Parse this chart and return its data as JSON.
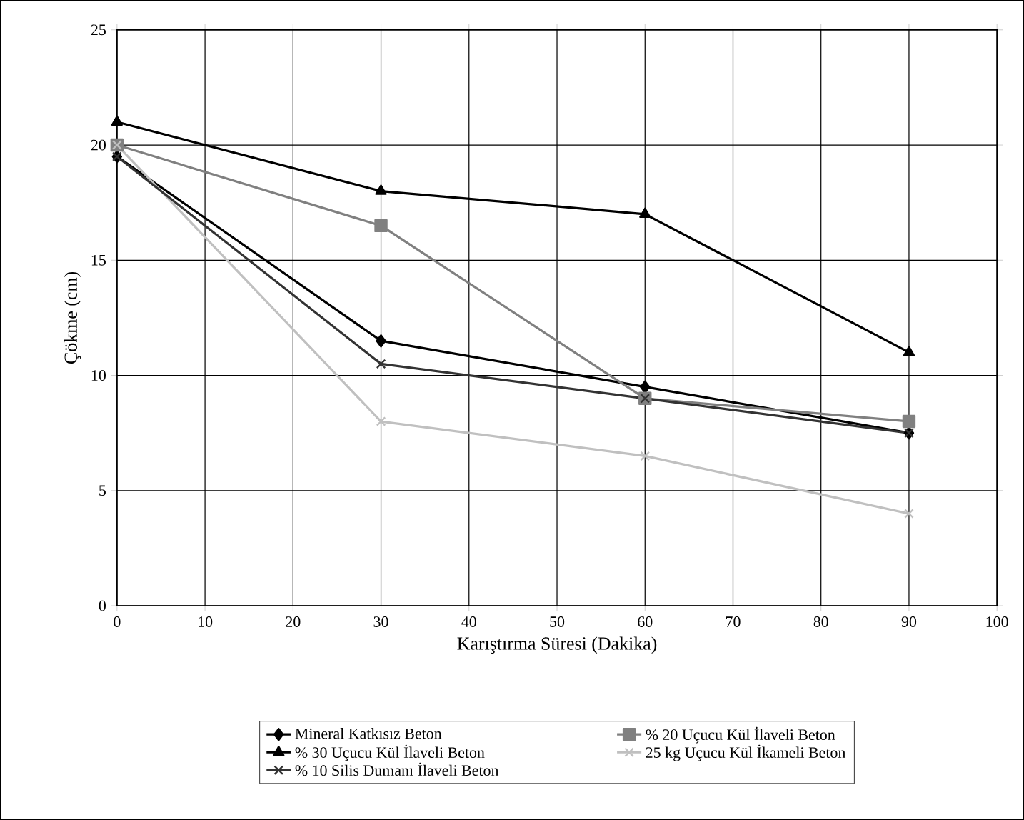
{
  "chart_data": {
    "type": "line",
    "xlabel": "Karıştırma Süresi (Dakika)",
    "ylabel": "Çökme  (cm)",
    "xlim": [
      0,
      100
    ],
    "xticks": [
      0,
      10,
      20,
      30,
      40,
      50,
      60,
      70,
      80,
      90,
      100
    ],
    "ylim": [
      0,
      25
    ],
    "yticks": [
      0,
      5,
      10,
      15,
      20,
      25
    ],
    "x": [
      0,
      30,
      60,
      90
    ],
    "grid": true,
    "legend": "bottom",
    "series": [
      {
        "name": "Mineral Katkısız Beton",
        "color": "#000000",
        "marker": "diamond",
        "values": [
          19.5,
          11.5,
          9.5,
          7.5
        ]
      },
      {
        "name": "% 20 Uçucu Kül İlaveli Beton",
        "color": "#808080",
        "marker": "square",
        "values": [
          20,
          16.5,
          9,
          8
        ]
      },
      {
        "name": "% 30 Uçucu Kül İlaveli Beton",
        "color": "#000000",
        "marker": "triangle",
        "values": [
          21,
          18,
          17,
          11
        ]
      },
      {
        "name": "25 kg Uçucu Kül İkameli Beton",
        "color": "#c0c0c0",
        "marker": "cross",
        "values": [
          20,
          8,
          6.5,
          4
        ]
      },
      {
        "name": "% 10 Silis Dumanı İlaveli Beton",
        "color": "#333333",
        "marker": "cross",
        "values": [
          19.5,
          10.5,
          9,
          7.5
        ]
      }
    ]
  }
}
